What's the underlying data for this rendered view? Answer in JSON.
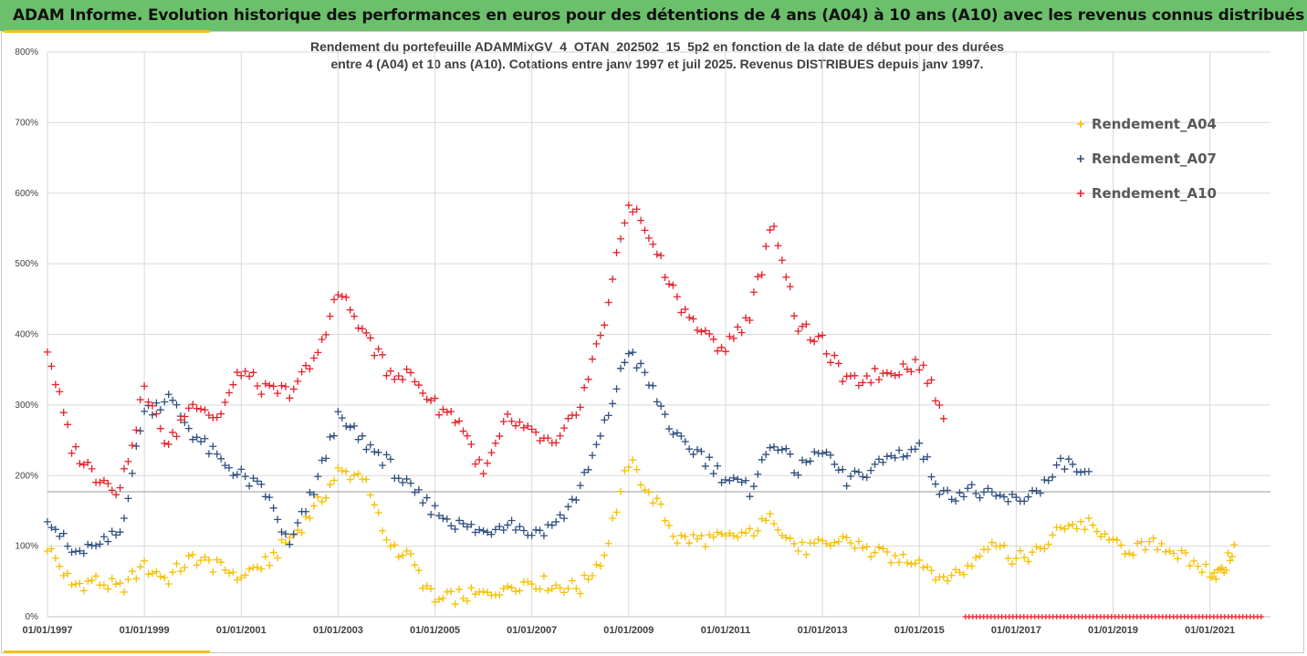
{
  "header": {
    "title": "ADAM Informe. Evolution historique des performances en euros pour des détentions de 4 ans (A04) à 10 ans (A10) avec les revenus connus distribués"
  },
  "colors": {
    "header_bg": "#6cc06c",
    "accent": "#f2c01c",
    "A04": "#f5c000",
    "A07": "#2f4f7f",
    "A10": "#e8202a"
  },
  "chart_data": {
    "type": "scatter",
    "title": "Rendement du portefeuille ADAMMixGV_4_OTAN_202502_15_5p2  en fonction de la date de début pour des durées",
    "subtitle": "entre 4 (A04) et 10 ans (A10). Cotations entre janv 1997 et juil 2025. Revenus DISTRIBUES depuis janv 1997.",
    "x_tick_labels": [
      "01/01/1997",
      "01/01/1999",
      "01/01/2001",
      "01/01/2003",
      "01/01/2005",
      "01/01/2007",
      "01/01/2009",
      "01/01/2011",
      "01/01/2013",
      "01/01/2015",
      "01/01/2017",
      "01/01/2019",
      "01/01/2021"
    ],
    "y_tick_labels": [
      "0%",
      "100%",
      "200%",
      "300%",
      "400%",
      "500%",
      "600%",
      "700%",
      "800%"
    ],
    "xlim": [
      "1997-01-01",
      "2022-04-01"
    ],
    "ylim": [
      0,
      800
    ],
    "grid": "vertical-and-horizontal",
    "legend_position": "top-right",
    "series": [
      {
        "name": "Rendement_A04",
        "color": "#f5c000",
        "x": [
          "1997-01",
          "1997-07",
          "1998-01",
          "1998-07",
          "1999-01",
          "1999-07",
          "2000-01",
          "2000-07",
          "2001-01",
          "2001-07",
          "2002-01",
          "2002-07",
          "2003-01",
          "2003-07",
          "2004-01",
          "2004-07",
          "2005-01",
          "2005-07",
          "2006-01",
          "2006-07",
          "2007-01",
          "2007-07",
          "2008-01",
          "2008-07",
          "2009-01",
          "2009-07",
          "2010-01",
          "2010-07",
          "2011-01",
          "2011-07",
          "2012-01",
          "2012-07",
          "2013-01",
          "2013-07",
          "2014-01",
          "2014-07",
          "2015-01",
          "2015-07",
          "2016-01",
          "2016-07",
          "2017-01",
          "2017-07",
          "2018-01",
          "2018-07",
          "2019-01",
          "2019-07",
          "2020-01",
          "2020-07",
          "2021-01",
          "2021-04",
          "2021-07"
        ],
        "y": [
          100,
          45,
          50,
          40,
          70,
          55,
          85,
          70,
          60,
          75,
          110,
          150,
          205,
          200,
          110,
          80,
          20,
          30,
          30,
          45,
          50,
          45,
          40,
          90,
          220,
          170,
          110,
          110,
          110,
          120,
          140,
          95,
          100,
          110,
          90,
          85,
          80,
          55,
          70,
          110,
          80,
          95,
          130,
          130,
          100,
          95,
          105,
          80,
          65,
          60,
          100
        ]
      },
      {
        "name": "Rendement_A07",
        "color": "#2f4f7f",
        "x": [
          "1997-01",
          "1997-07",
          "1998-01",
          "1998-07",
          "1999-01",
          "1999-07",
          "2000-01",
          "2000-07",
          "2001-01",
          "2001-07",
          "2002-01",
          "2002-07",
          "2003-01",
          "2003-07",
          "2004-01",
          "2004-07",
          "2005-01",
          "2005-07",
          "2006-01",
          "2006-07",
          "2007-01",
          "2007-07",
          "2008-01",
          "2008-07",
          "2009-01",
          "2009-07",
          "2010-01",
          "2010-07",
          "2011-01",
          "2011-07",
          "2012-01",
          "2012-07",
          "2013-01",
          "2013-07",
          "2014-01",
          "2014-07",
          "2015-01",
          "2015-07",
          "2016-01",
          "2016-07",
          "2017-01",
          "2017-07",
          "2018-01",
          "2018-07"
        ],
        "y": [
          145,
          90,
          95,
          120,
          290,
          310,
          260,
          225,
          200,
          175,
          100,
          180,
          280,
          250,
          220,
          180,
          150,
          130,
          120,
          135,
          120,
          130,
          180,
          270,
          380,
          320,
          250,
          230,
          195,
          180,
          250,
          205,
          240,
          190,
          210,
          230,
          240,
          170,
          180,
          170,
          165,
          180,
          220,
          195
        ]
      },
      {
        "name": "Rendement_A10",
        "color": "#e8202a",
        "x": [
          "1997-01",
          "1997-07",
          "1998-01",
          "1998-07",
          "1999-01",
          "1999-07",
          "2000-01",
          "2000-07",
          "2001-01",
          "2001-07",
          "2002-01",
          "2002-07",
          "2003-01",
          "2003-07",
          "2004-01",
          "2004-07",
          "2005-01",
          "2005-07",
          "2006-01",
          "2006-07",
          "2007-01",
          "2007-07",
          "2008-01",
          "2008-07",
          "2009-01",
          "2009-07",
          "2010-01",
          "2010-07",
          "2011-01",
          "2011-07",
          "2012-01",
          "2012-07",
          "2013-01",
          "2013-07",
          "2014-01",
          "2014-07",
          "2015-01",
          "2015-07"
        ],
        "y": [
          380,
          240,
          200,
          180,
          320,
          240,
          310,
          280,
          350,
          320,
          320,
          360,
          460,
          410,
          350,
          340,
          300,
          280,
          200,
          280,
          260,
          240,
          300,
          420,
          590,
          530,
          450,
          400,
          380,
          430,
          560,
          410,
          390,
          330,
          340,
          350,
          360,
          290
        ]
      }
    ]
  }
}
